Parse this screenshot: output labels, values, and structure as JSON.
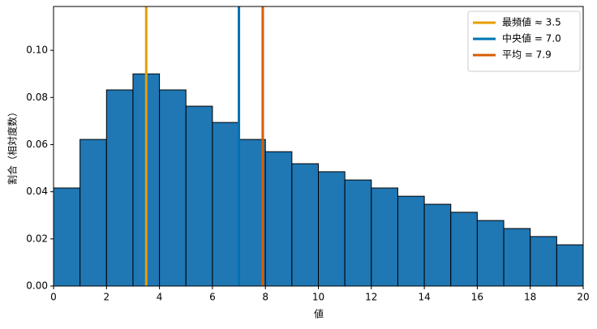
{
  "chart_data": {
    "type": "histogram",
    "xlabel": "値",
    "ylabel": "割合（相対度数）",
    "bins": [
      0,
      1,
      2,
      3,
      4,
      5,
      6,
      7,
      8,
      9,
      10,
      11,
      12,
      13,
      14,
      15,
      16,
      17,
      18,
      19,
      20
    ],
    "values": [
      0.0416,
      0.0622,
      0.0832,
      0.09,
      0.0832,
      0.0763,
      0.0694,
      0.0622,
      0.057,
      0.0519,
      0.0485,
      0.045,
      0.0416,
      0.0381,
      0.0347,
      0.0313,
      0.0278,
      0.0244,
      0.021,
      0.0175
    ],
    "color": "#1f77b4",
    "lines": [
      {
        "name": "最頻値 ≈ 3.5",
        "x": 3.5,
        "color": "#e69f00"
      },
      {
        "name": "中央値 = 7.0",
        "x": 7.0,
        "color": "#0072b2"
      },
      {
        "name": "平均 = 7.9",
        "x": 7.9,
        "color": "#d55e00"
      }
    ],
    "xlim": [
      0,
      20
    ],
    "ylim": [
      0,
      0.1186
    ],
    "xticks": [
      0,
      2,
      4,
      6,
      8,
      10,
      12,
      14,
      16,
      18,
      20
    ],
    "yticks": [
      {
        "value": 0,
        "label": "0.00"
      },
      {
        "value": 0.02,
        "label": "0.02"
      },
      {
        "value": 0.04,
        "label": "0.04"
      },
      {
        "value": 0.06,
        "label": "0.06"
      },
      {
        "value": 0.08,
        "label": "0.08"
      },
      {
        "value": 0.1,
        "label": "0.10"
      }
    ],
    "legend": "upper right"
  }
}
